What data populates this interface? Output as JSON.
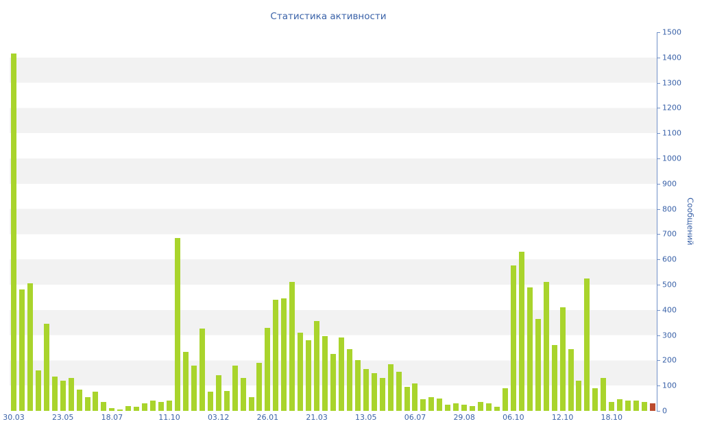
{
  "title": "Статистика активности",
  "colors": {
    "bar": "#a9d42c",
    "highlight_bar": "#bb4b2e",
    "axis_line": "#6f8fc7",
    "text": "#3a62a8",
    "stripe": "#f2f2f2",
    "background": "#ffffff"
  },
  "chart_data": {
    "type": "bar",
    "title": "Статистика активности",
    "xlabel": "",
    "ylabel": "Сообщений",
    "ylim": [
      0,
      1500
    ],
    "ytick_step": 100,
    "yticks": [
      0,
      100,
      200,
      300,
      400,
      500,
      600,
      700,
      800,
      900,
      1000,
      1100,
      1200,
      1300,
      1400,
      1500
    ],
    "grid": "horizontal-stripes",
    "legend": "none",
    "values": [
      1415,
      480,
      505,
      160,
      345,
      135,
      120,
      130,
      85,
      55,
      75,
      35,
      10,
      5,
      20,
      15,
      30,
      40,
      35,
      40,
      685,
      235,
      180,
      325,
      75,
      140,
      80,
      180,
      130,
      55,
      190,
      330,
      440,
      445,
      510,
      310,
      280,
      355,
      295,
      225,
      290,
      245,
      200,
      165,
      150,
      130,
      185,
      155,
      95,
      110,
      45,
      55,
      50,
      25,
      30,
      25,
      20,
      35,
      30,
      15,
      90,
      575,
      630,
      490,
      365,
      510,
      260,
      410,
      245,
      120,
      525,
      90,
      130,
      35,
      45,
      40,
      40,
      35,
      30
    ],
    "highlight": {
      "index": 78,
      "color": "#bb4b2e"
    },
    "x_ticks": [
      {
        "index": 0,
        "label": "30.03"
      },
      {
        "index": 6,
        "label": "23.05"
      },
      {
        "index": 12,
        "label": "18.07"
      },
      {
        "index": 19,
        "label": "11.10"
      },
      {
        "index": 25,
        "label": "03.12"
      },
      {
        "index": 31,
        "label": "26.01"
      },
      {
        "index": 37,
        "label": "21.03"
      },
      {
        "index": 43,
        "label": "13.05"
      },
      {
        "index": 49,
        "label": "06.07"
      },
      {
        "index": 55,
        "label": "29.08"
      },
      {
        "index": 61,
        "label": "06.10"
      },
      {
        "index": 67,
        "label": "12.10"
      },
      {
        "index": 73,
        "label": "18.10"
      }
    ]
  }
}
